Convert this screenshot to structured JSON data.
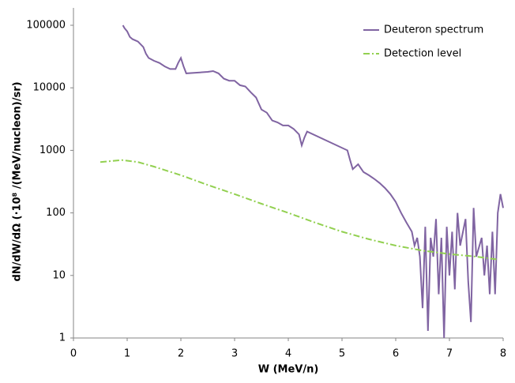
{
  "chart_data": {
    "type": "line",
    "xlabel": "W (MeV/n)",
    "ylabel": "dN/dW/dΩ (·10⁸ /(MeV/nucleon)/sr)",
    "xlim": [
      0,
      8
    ],
    "xticks": [
      0,
      1,
      2,
      3,
      4,
      5,
      6,
      7,
      8
    ],
    "ylim": [
      1,
      100000
    ],
    "yticks": [
      1,
      10,
      100,
      1000,
      10000,
      100000
    ],
    "ylog": true,
    "legend": "top-right",
    "series": [
      {
        "name": "Deuteron spectrum",
        "color": "#8064a2",
        "dash": "solid",
        "x": [
          0.92,
          0.95,
          1.0,
          1.05,
          1.1,
          1.2,
          1.3,
          1.35,
          1.4,
          1.5,
          1.6,
          1.7,
          1.8,
          1.9,
          1.95,
          2.0,
          2.05,
          2.1,
          2.3,
          2.5,
          2.6,
          2.7,
          2.8,
          2.9,
          3.0,
          3.1,
          3.2,
          3.3,
          3.4,
          3.5,
          3.6,
          3.7,
          3.8,
          3.9,
          4.0,
          4.1,
          4.2,
          4.25,
          4.3,
          4.35,
          5.1,
          5.15,
          5.2,
          5.3,
          5.4,
          5.5,
          5.6,
          5.7,
          5.8,
          5.9,
          6.0,
          6.1,
          6.2,
          6.3,
          6.35,
          6.4,
          6.45,
          6.5,
          6.55,
          6.6,
          6.65,
          6.7,
          6.75,
          6.8,
          6.85,
          6.9,
          6.95,
          7.0,
          7.05,
          7.1,
          7.15,
          7.2,
          7.3,
          7.35,
          7.4,
          7.45,
          7.5,
          7.6,
          7.65,
          7.7,
          7.75,
          7.8,
          7.85,
          7.9,
          7.95,
          8.0
        ],
        "values": [
          100000,
          90000,
          80000,
          65000,
          60000,
          55000,
          45000,
          35000,
          30000,
          27000,
          25000,
          22000,
          20000,
          20000,
          25000,
          30000,
          22000,
          17000,
          17500,
          18000,
          18500,
          17000,
          14000,
          13000,
          13000,
          11000,
          10500,
          8500,
          7000,
          4500,
          4000,
          3000,
          2800,
          2500,
          2500,
          2200,
          1800,
          1200,
          1600,
          2000,
          1000,
          700,
          500,
          600,
          450,
          400,
          350,
          300,
          250,
          200,
          150,
          100,
          70,
          50,
          30,
          40,
          20,
          3,
          60,
          1.3,
          40,
          20,
          80,
          5,
          40,
          1,
          60,
          10,
          50,
          6,
          100,
          30,
          80,
          8,
          1.8,
          120,
          20,
          40,
          10,
          30,
          5,
          50,
          5,
          100,
          200,
          120
        ]
      },
      {
        "name": "Detection level",
        "color": "#92d050",
        "dash": "dashdot",
        "x": [
          0.5,
          0.9,
          1.2,
          1.5,
          2,
          2.5,
          3,
          3.5,
          4,
          4.5,
          5,
          5.5,
          6,
          6.5,
          7,
          7.5,
          7.9
        ],
        "values": [
          650,
          700,
          650,
          550,
          400,
          280,
          200,
          140,
          100,
          70,
          50,
          38,
          30,
          25,
          22,
          20,
          18
        ]
      }
    ]
  }
}
